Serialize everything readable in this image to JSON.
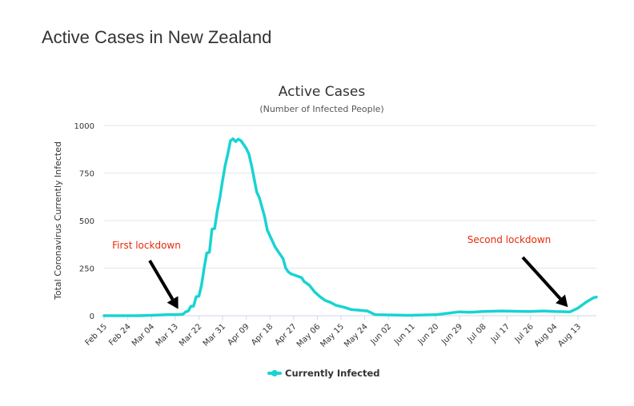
{
  "page": {
    "title": "Active Cases in New Zealand"
  },
  "colors": {
    "series": "#19d3d3",
    "annotation": "#e8290b",
    "grid": "#e6e6e6",
    "arrow": "#000000"
  },
  "chart_data": {
    "type": "line",
    "title": "Active Cases",
    "subtitle": "(Number of Infected People)",
    "ylabel": "Total Coronavirus Currently Infected",
    "xlabel": "",
    "ylim": [
      0,
      1000
    ],
    "yticks": [
      "0",
      "250",
      "500",
      "750",
      "1000"
    ],
    "ytick_values": [
      0,
      250,
      500,
      750,
      1000
    ],
    "grid": true,
    "legend": "bottom-center",
    "x_start": "2020-02-15",
    "xticks": [
      "Feb 15",
      "Feb 24",
      "Mar 04",
      "Mar 13",
      "Mar 22",
      "Mar 31",
      "Apr 09",
      "Apr 18",
      "Apr 27",
      "May 06",
      "May 15",
      "May 24",
      "Jun 02",
      "Jun 11",
      "Jun 20",
      "Jun 29",
      "Jul 08",
      "Jul 17",
      "Jul 26",
      "Aug 04",
      "Aug 13"
    ],
    "xtick_dates": [
      "2020-02-15",
      "2020-02-24",
      "2020-03-04",
      "2020-03-13",
      "2020-03-22",
      "2020-03-31",
      "2020-04-09",
      "2020-04-18",
      "2020-04-27",
      "2020-05-06",
      "2020-05-15",
      "2020-05-24",
      "2020-06-02",
      "2020-06-11",
      "2020-06-20",
      "2020-06-29",
      "2020-07-08",
      "2020-07-17",
      "2020-07-26",
      "2020-08-04",
      "2020-08-13"
    ],
    "x_end": "2020-08-20",
    "series": [
      {
        "name": "Currently Infected",
        "points": [
          [
            "2020-02-15",
            0
          ],
          [
            "2020-02-28",
            0
          ],
          [
            "2020-03-04",
            2
          ],
          [
            "2020-03-10",
            5
          ],
          [
            "2020-03-14",
            6
          ],
          [
            "2020-03-16",
            8
          ],
          [
            "2020-03-17",
            20
          ],
          [
            "2020-03-18",
            25
          ],
          [
            "2020-03-19",
            50
          ],
          [
            "2020-03-20",
            50
          ],
          [
            "2020-03-21",
            100
          ],
          [
            "2020-03-22",
            102
          ],
          [
            "2020-03-23",
            160
          ],
          [
            "2020-03-24",
            250
          ],
          [
            "2020-03-25",
            330
          ],
          [
            "2020-03-26",
            333
          ],
          [
            "2020-03-27",
            455
          ],
          [
            "2020-03-28",
            458
          ],
          [
            "2020-03-29",
            550
          ],
          [
            "2020-03-30",
            620
          ],
          [
            "2020-03-31",
            710
          ],
          [
            "2020-04-01",
            790
          ],
          [
            "2020-04-02",
            850
          ],
          [
            "2020-04-03",
            920
          ],
          [
            "2020-04-04",
            930
          ],
          [
            "2020-04-05",
            915
          ],
          [
            "2020-04-06",
            928
          ],
          [
            "2020-04-07",
            920
          ],
          [
            "2020-04-08",
            900
          ],
          [
            "2020-04-09",
            880
          ],
          [
            "2020-04-10",
            850
          ],
          [
            "2020-04-11",
            790
          ],
          [
            "2020-04-12",
            720
          ],
          [
            "2020-04-13",
            650
          ],
          [
            "2020-04-14",
            620
          ],
          [
            "2020-04-15",
            570
          ],
          [
            "2020-04-16",
            520
          ],
          [
            "2020-04-17",
            450
          ],
          [
            "2020-04-18",
            420
          ],
          [
            "2020-04-19",
            390
          ],
          [
            "2020-04-20",
            360
          ],
          [
            "2020-04-21",
            340
          ],
          [
            "2020-04-22",
            320
          ],
          [
            "2020-04-23",
            300
          ],
          [
            "2020-04-24",
            250
          ],
          [
            "2020-04-25",
            230
          ],
          [
            "2020-04-26",
            220
          ],
          [
            "2020-04-28",
            210
          ],
          [
            "2020-04-30",
            200
          ],
          [
            "2020-05-01",
            180
          ],
          [
            "2020-05-03",
            160
          ],
          [
            "2020-05-05",
            125
          ],
          [
            "2020-05-07",
            100
          ],
          [
            "2020-05-09",
            80
          ],
          [
            "2020-05-11",
            70
          ],
          [
            "2020-05-13",
            55
          ],
          [
            "2020-05-16",
            45
          ],
          [
            "2020-05-19",
            32
          ],
          [
            "2020-05-21",
            30
          ],
          [
            "2020-05-25",
            25
          ],
          [
            "2020-05-28",
            5
          ],
          [
            "2020-06-10",
            2
          ],
          [
            "2020-06-20",
            5
          ],
          [
            "2020-06-26",
            15
          ],
          [
            "2020-06-29",
            20
          ],
          [
            "2020-07-03",
            18
          ],
          [
            "2020-07-08",
            22
          ],
          [
            "2020-07-15",
            25
          ],
          [
            "2020-07-20",
            23
          ],
          [
            "2020-07-26",
            22
          ],
          [
            "2020-07-31",
            25
          ],
          [
            "2020-08-04",
            22
          ],
          [
            "2020-08-10",
            20
          ],
          [
            "2020-08-13",
            40
          ],
          [
            "2020-08-16",
            70
          ],
          [
            "2020-08-19",
            95
          ],
          [
            "2020-08-20",
            98
          ]
        ]
      }
    ],
    "annotations": [
      {
        "text": "First lockdown",
        "arrow_to_date": "2020-03-16",
        "arrow_to_value": 10
      },
      {
        "text": "Second lockdown",
        "arrow_to_date": "2020-08-11",
        "arrow_to_value": 20
      }
    ]
  }
}
